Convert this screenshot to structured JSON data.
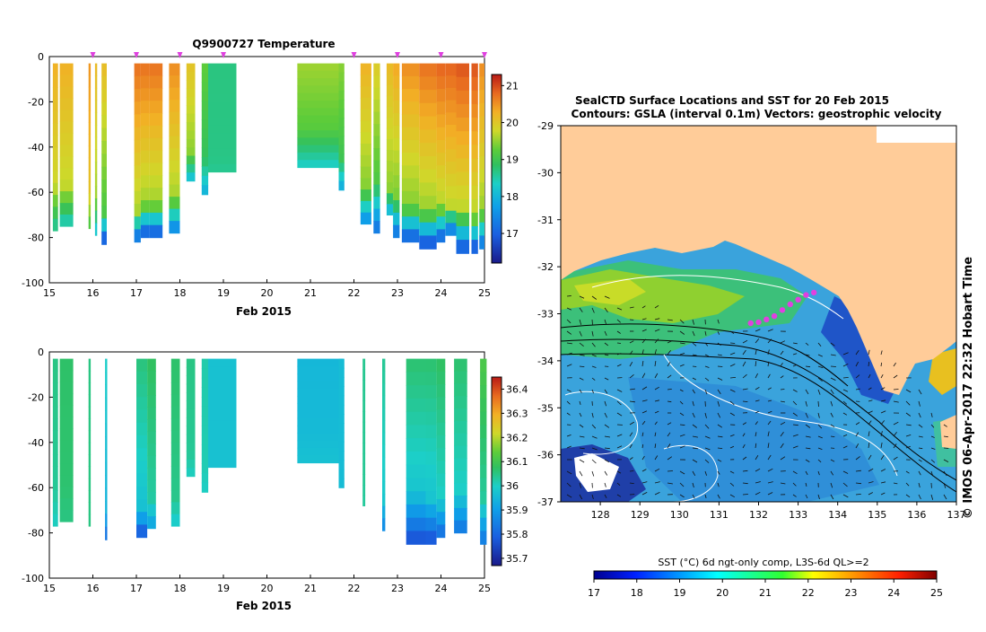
{
  "figure": {
    "title": "Q9900727  Temperature",
    "timestamp": "© IMOS 06-Apr-2017 22:32 Hobart Time"
  },
  "chart_data": [
    {
      "id": "temperature-section",
      "type": "heatmap",
      "title": "Q9900727  Temperature",
      "xlabel": "Feb 2015",
      "ylabel": "",
      "xlim": [
        15,
        25
      ],
      "ylim": [
        -100,
        0
      ],
      "xticks": [
        "15",
        "16",
        "17",
        "18",
        "19",
        "20",
        "21",
        "22",
        "23",
        "24",
        "25"
      ],
      "yticks": [
        "0",
        "-20",
        "-40",
        "-60",
        "-80",
        "-100"
      ],
      "colorbar": {
        "ticks": [
          "17",
          "18",
          "19",
          "20",
          "21"
        ],
        "range": [
          16.2,
          21.3
        ]
      },
      "markers_day": [
        16.0,
        17.0,
        18.0,
        19.0,
        22.0,
        23.0,
        24.0,
        25.0
      ],
      "profiles": [
        {
          "x0": 15.08,
          "x1": 15.2,
          "bottom": -77,
          "surface": 20.3,
          "thermo": -57,
          "deep": 18.5
        },
        {
          "x0": 15.24,
          "x1": 15.55,
          "bottom": -75,
          "surface": 20.3,
          "thermo": -58,
          "deep": 18.3
        },
        {
          "x0": 15.9,
          "x1": 15.95,
          "bottom": -76,
          "surface": 20.5,
          "thermo": -60,
          "deep": 19.0
        },
        {
          "x0": 16.05,
          "x1": 16.1,
          "bottom": -79,
          "surface": 20.2,
          "thermo": -62,
          "deep": 18.0
        },
        {
          "x0": 16.2,
          "x1": 16.32,
          "bottom": -83,
          "surface": 20.2,
          "thermo": -70,
          "deep": 16.5
        },
        {
          "x0": 16.95,
          "x1": 17.1,
          "bottom": -82,
          "surface": 20.8,
          "thermo": -68,
          "deep": 16.8
        },
        {
          "x0": 17.1,
          "x1": 17.3,
          "bottom": -80,
          "surface": 20.8,
          "thermo": -65,
          "deep": 16.6
        },
        {
          "x0": 17.3,
          "x1": 17.6,
          "bottom": -80,
          "surface": 20.8,
          "thermo": -65,
          "deep": 16.6
        },
        {
          "x0": 17.75,
          "x1": 18.0,
          "bottom": -78,
          "surface": 20.6,
          "thermo": -62,
          "deep": 17.2
        },
        {
          "x0": 18.15,
          "x1": 18.35,
          "bottom": -55,
          "surface": 20.1,
          "thermo": -42,
          "deep": 18.0
        },
        {
          "x0": 18.5,
          "x1": 18.65,
          "bottom": -61,
          "surface": 19.3,
          "thermo": -45,
          "deep": 17.9
        },
        {
          "x0": 18.65,
          "x1": 19.3,
          "bottom": -51,
          "surface": 18.7,
          "thermo": -45,
          "deep": 18.6
        },
        {
          "x0": 20.7,
          "x1": 21.75,
          "bottom": -49,
          "surface": 19.6,
          "thermo": -32,
          "deep": 18.3
        },
        {
          "x0": 21.65,
          "x1": 21.78,
          "bottom": -59,
          "surface": 19.5,
          "thermo": -45,
          "deep": 17.8
        },
        {
          "x0": 22.15,
          "x1": 22.4,
          "bottom": -74,
          "surface": 20.3,
          "thermo": -58,
          "deep": 17.4
        },
        {
          "x0": 22.45,
          "x1": 22.6,
          "bottom": -78,
          "surface": 20.0,
          "thermo": -55,
          "deep": 17.1
        },
        {
          "x0": 22.75,
          "x1": 22.9,
          "bottom": -70,
          "surface": 20.2,
          "thermo": -58,
          "deep": 17.8
        },
        {
          "x0": 22.9,
          "x1": 23.05,
          "bottom": -80,
          "surface": 20.4,
          "thermo": -62,
          "deep": 17.0
        },
        {
          "x0": 23.1,
          "x1": 23.5,
          "bottom": -82,
          "surface": 20.6,
          "thermo": -66,
          "deep": 16.7
        },
        {
          "x0": 23.5,
          "x1": 23.9,
          "bottom": -85,
          "surface": 20.8,
          "thermo": -68,
          "deep": 16.5
        },
        {
          "x0": 23.9,
          "x1": 24.1,
          "bottom": -82,
          "surface": 20.9,
          "thermo": -66,
          "deep": 16.7
        },
        {
          "x0": 24.1,
          "x1": 24.35,
          "bottom": -79,
          "surface": 20.9,
          "thermo": -66,
          "deep": 16.9
        },
        {
          "x0": 24.35,
          "x1": 24.65,
          "bottom": -87,
          "surface": 21.0,
          "thermo": -68,
          "deep": 16.6
        },
        {
          "x0": 24.7,
          "x1": 24.85,
          "bottom": -87,
          "surface": 21.0,
          "thermo": -70,
          "deep": 16.5
        },
        {
          "x0": 24.88,
          "x1": 25.0,
          "bottom": -85,
          "surface": 20.6,
          "thermo": -68,
          "deep": 17.0
        }
      ]
    },
    {
      "id": "salinity-section",
      "type": "heatmap",
      "title": "",
      "xlabel": "Feb 2015",
      "ylabel": "",
      "xlim": [
        15,
        25
      ],
      "ylim": [
        -100,
        0
      ],
      "xticks": [
        "15",
        "16",
        "17",
        "18",
        "19",
        "20",
        "21",
        "22",
        "23",
        "24",
        "25"
      ],
      "yticks": [
        "0",
        "-20",
        "-40",
        "-60",
        "-80",
        "-100"
      ],
      "colorbar": {
        "ticks": [
          "35.7",
          "35.8",
          "35.9",
          "36",
          "36.1",
          "36.2",
          "36.3",
          "36.4"
        ],
        "range": [
          35.67,
          36.45
        ]
      },
      "profiles": [
        {
          "x0": 15.08,
          "x1": 15.2,
          "bottom": -77,
          "surface": 36.05,
          "thermo": -60,
          "deep": 36.0
        },
        {
          "x0": 15.24,
          "x1": 15.55,
          "bottom": -75,
          "surface": 36.07,
          "thermo": -60,
          "deep": 36.05
        },
        {
          "x0": 15.9,
          "x1": 15.95,
          "bottom": -77,
          "surface": 36.05,
          "thermo": -60,
          "deep": 36.05
        },
        {
          "x0": 16.28,
          "x1": 16.33,
          "bottom": -83,
          "surface": 36.0,
          "thermo": -70,
          "deep": 35.8
        },
        {
          "x0": 17.0,
          "x1": 17.25,
          "bottom": -82,
          "surface": 36.06,
          "thermo": -70,
          "deep": 35.75
        },
        {
          "x0": 17.25,
          "x1": 17.45,
          "bottom": -78,
          "surface": 36.08,
          "thermo": -65,
          "deep": 35.9
        },
        {
          "x0": 17.8,
          "x1": 18.0,
          "bottom": -77,
          "surface": 36.07,
          "thermo": -65,
          "deep": 35.98
        },
        {
          "x0": 18.15,
          "x1": 18.35,
          "bottom": -55,
          "surface": 36.05,
          "thermo": -45,
          "deep": 36.0
        },
        {
          "x0": 18.5,
          "x1": 18.65,
          "bottom": -62,
          "surface": 36.02,
          "thermo": -50,
          "deep": 36.0
        },
        {
          "x0": 18.65,
          "x1": 19.3,
          "bottom": -51,
          "surface": 35.97,
          "thermo": -45,
          "deep": 35.97
        },
        {
          "x0": 20.7,
          "x1": 21.75,
          "bottom": -49,
          "surface": 35.95,
          "thermo": -35,
          "deep": 35.97
        },
        {
          "x0": 21.65,
          "x1": 21.78,
          "bottom": -60,
          "surface": 35.96,
          "thermo": -45,
          "deep": 35.96
        },
        {
          "x0": 22.2,
          "x1": 22.26,
          "bottom": -68,
          "surface": 36.04,
          "thermo": -55,
          "deep": 36.03
        },
        {
          "x0": 22.65,
          "x1": 22.72,
          "bottom": -79,
          "surface": 36.04,
          "thermo": -65,
          "deep": 35.85
        },
        {
          "x0": 23.2,
          "x1": 23.65,
          "bottom": -85,
          "surface": 36.07,
          "thermo": -62,
          "deep": 35.75
        },
        {
          "x0": 23.65,
          "x1": 23.9,
          "bottom": -85,
          "surface": 36.07,
          "thermo": -65,
          "deep": 35.75
        },
        {
          "x0": 23.9,
          "x1": 24.1,
          "bottom": -82,
          "surface": 36.08,
          "thermo": -65,
          "deep": 35.8
        },
        {
          "x0": 24.3,
          "x1": 24.6,
          "bottom": -80,
          "surface": 36.07,
          "thermo": -62,
          "deep": 35.82
        },
        {
          "x0": 24.9,
          "x1": 25.05,
          "bottom": -85,
          "surface": 36.12,
          "thermo": -65,
          "deep": 35.82
        }
      ]
    },
    {
      "id": "sst-map",
      "type": "heatmap",
      "title": "SealCTD Surface Locations and SST for 20 Feb 2015",
      "subtitle": "Contours: GSLA (interval 0.1m) Vectors: geostrophic velocity",
      "xlabel": "",
      "ylabel": "",
      "xlim": [
        127,
        137
      ],
      "ylim": [
        -37,
        -29
      ],
      "xticks": [
        "128",
        "129",
        "130",
        "131",
        "132",
        "133",
        "134",
        "135",
        "136",
        "137"
      ],
      "yticks": [
        "-29",
        "-30",
        "-31",
        "-32",
        "-33",
        "-34",
        "-35",
        "-36",
        "-37"
      ],
      "colorbar": {
        "label": "SST (°C) 6d ngt-only comp, L3S-6d QL>=2",
        "ticks": [
          "17",
          "18",
          "19",
          "20",
          "21",
          "22",
          "23",
          "24",
          "25"
        ],
        "range": [
          17,
          25
        ]
      },
      "seal_track": [
        {
          "lon": 131.8,
          "lat": -33.2
        },
        {
          "lon": 132.0,
          "lat": -33.18
        },
        {
          "lon": 132.2,
          "lat": -33.12
        },
        {
          "lon": 132.4,
          "lat": -33.05
        },
        {
          "lon": 132.6,
          "lat": -32.92
        },
        {
          "lon": 132.8,
          "lat": -32.8
        },
        {
          "lon": 133.0,
          "lat": -32.7
        },
        {
          "lon": 133.2,
          "lat": -32.6
        },
        {
          "lon": 133.4,
          "lat": -32.55
        }
      ]
    }
  ]
}
